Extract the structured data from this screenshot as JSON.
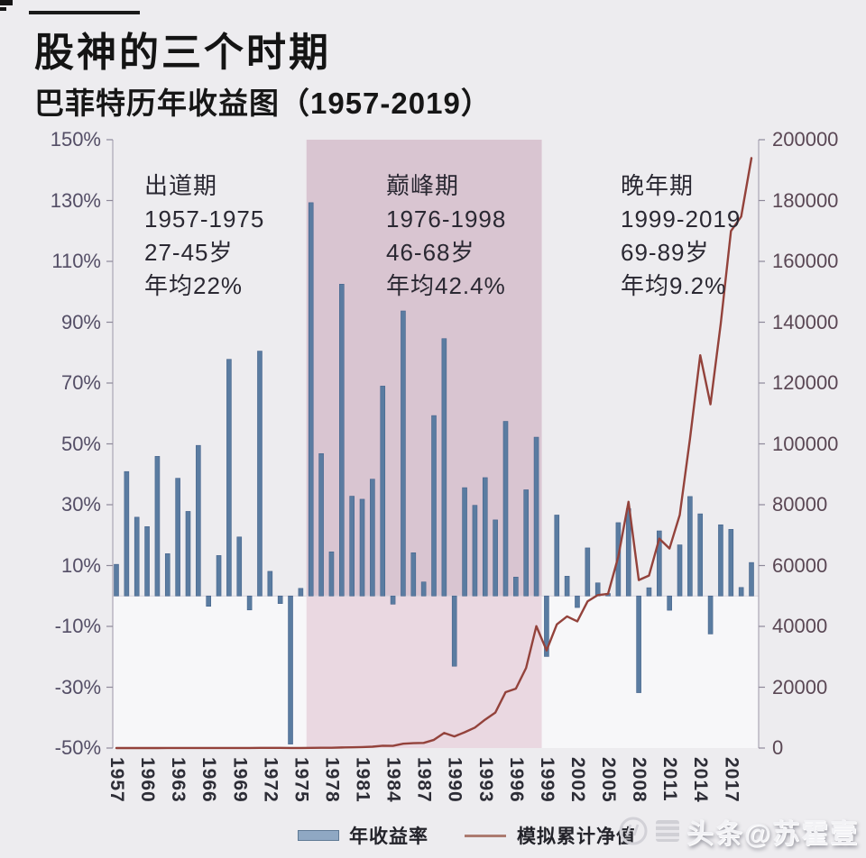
{
  "header": {
    "title": "股神的三个时期",
    "subtitle": "巴菲特历年收益图（1957-2019）"
  },
  "annotations": [
    {
      "title": "出道期",
      "period": "1957-1975",
      "age": "27-45岁",
      "avg_return": "年均22%"
    },
    {
      "title": "巅峰期",
      "period": "1976-1998",
      "age": "46-68岁",
      "avg_return": "年均42.4%"
    },
    {
      "title": "晚年期",
      "period": "1999-2019",
      "age": "69-89岁",
      "avg_return": "年均9.2%"
    }
  ],
  "legend": {
    "bar_label": "年收益率",
    "line_label": "模拟累计净值"
  },
  "watermark": {
    "text": "头条@苏霍壹"
  },
  "colors": {
    "page_bg": "#EDECEF",
    "plot_below_zero_bg": "#F7F7F9",
    "band_upper": "#D9C5D1",
    "band_lower": "#EAD8E1",
    "bar": "#5A7CA1",
    "bar_stroke": "#47648C",
    "line": "#93423B",
    "legend_bar": "#8FA8C3",
    "legend_line": "#AC7B70",
    "axis_line": "#ABA7B4",
    "tick": "#8D8899",
    "zero_line": "#D6D2DC"
  },
  "chart_data": {
    "type": "bar+line combo",
    "title": "巴菲特历年收益图（1957-2019）",
    "highlight_band": {
      "from_year": 1976,
      "to_year": 1998
    },
    "left_axis": {
      "min": -50,
      "max": 150,
      "tick_labels": [
        "150%",
        "130%",
        "110%",
        "90%",
        "70%",
        "50%",
        "30%",
        "10%",
        "-10%",
        "-30%",
        "-50%"
      ],
      "tick_values": [
        150,
        130,
        110,
        90,
        70,
        50,
        30,
        10,
        -10,
        -30,
        -50
      ]
    },
    "right_axis": {
      "min": 0,
      "max": 200000,
      "tick_labels": [
        "200000",
        "180000",
        "160000",
        "140000",
        "120000",
        "100000",
        "80000",
        "60000",
        "40000",
        "20000",
        "0"
      ],
      "tick_values": [
        200000,
        180000,
        160000,
        140000,
        120000,
        100000,
        80000,
        60000,
        40000,
        20000,
        0
      ]
    },
    "x_tick_years": [
      1957,
      1960,
      1963,
      1966,
      1969,
      1972,
      1975,
      1978,
      1981,
      1984,
      1987,
      1990,
      1993,
      1996,
      1999,
      2002,
      2005,
      2008,
      2011,
      2014,
      2017
    ],
    "years": [
      1957,
      1958,
      1959,
      1960,
      1961,
      1962,
      1963,
      1964,
      1965,
      1966,
      1967,
      1968,
      1969,
      1970,
      1971,
      1972,
      1973,
      1974,
      1975,
      1976,
      1977,
      1978,
      1979,
      1980,
      1981,
      1982,
      1983,
      1984,
      1985,
      1986,
      1987,
      1988,
      1989,
      1990,
      1991,
      1992,
      1993,
      1994,
      1995,
      1996,
      1997,
      1998,
      1999,
      2000,
      2001,
      2002,
      2003,
      2004,
      2005,
      2006,
      2007,
      2008,
      2009,
      2010,
      2011,
      2012,
      2013,
      2014,
      2015,
      2016,
      2017,
      2018,
      2019
    ],
    "series": [
      {
        "name": "年收益率",
        "type": "bar",
        "axis": "left",
        "unit": "%",
        "values": [
          10.4,
          40.9,
          25.9,
          22.8,
          45.9,
          13.9,
          38.7,
          27.8,
          49.5,
          -3.4,
          13.3,
          77.8,
          19.4,
          -4.6,
          80.5,
          8.1,
          -2.5,
          -48.7,
          2.5,
          129.3,
          46.8,
          14.5,
          102.5,
          32.8,
          31.8,
          38.4,
          69.0,
          -2.7,
          93.7,
          14.2,
          4.6,
          59.3,
          84.6,
          -23.1,
          35.6,
          29.8,
          38.9,
          25.0,
          57.4,
          6.2,
          34.9,
          52.2,
          -19.9,
          26.6,
          6.5,
          -3.8,
          15.8,
          4.3,
          0.8,
          24.1,
          28.7,
          -31.8,
          2.7,
          21.4,
          -4.7,
          16.8,
          32.7,
          27.0,
          -12.5,
          23.4,
          21.9,
          2.8,
          11.0
        ]
      },
      {
        "name": "模拟累计净值",
        "type": "line",
        "axis": "right",
        "values": [
          1.1,
          1.56,
          1.96,
          2.41,
          3.51,
          4.0,
          5.54,
          7.09,
          10.6,
          10.2,
          11.6,
          20.6,
          24.6,
          23.5,
          42.4,
          45.8,
          44.7,
          22.9,
          23.5,
          53.9,
          79.1,
          90.5,
          183,
          244,
          321,
          444,
          751,
          730,
          1415,
          1616,
          1690,
          2692,
          4969,
          3821,
          5182,
          6726,
          9342,
          11677,
          18380,
          19519,
          26331,
          40076,
          32101,
          40640,
          43282,
          41637,
          48216,
          50289,
          50691,
          62908,
          80962,
          55216,
          56707,
          68842,
          65607,
          76629,
          101687,
          129142,
          112999,
          139441,
          169978,
          174738,
          193959
        ]
      }
    ]
  }
}
